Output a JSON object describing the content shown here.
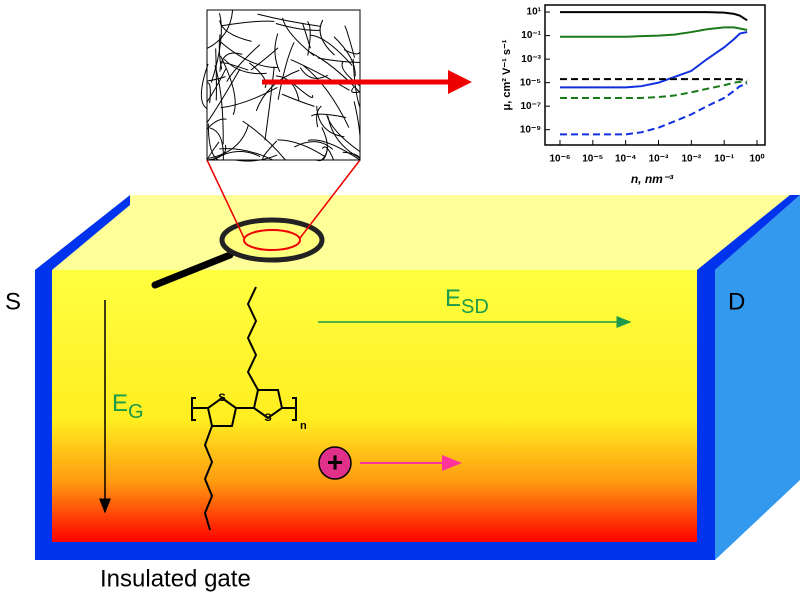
{
  "labels": {
    "source": "S",
    "drain": "D",
    "gate": "Insulated gate"
  },
  "fields": {
    "source_drain": {
      "symbol": "E",
      "subscript": "SD"
    },
    "gate": {
      "symbol": "E",
      "subscript": "G"
    }
  },
  "molecule": {
    "atoms": [
      "S",
      "S"
    ],
    "repeat": "n"
  },
  "charge": "+",
  "chart_data": {
    "type": "line",
    "xlabel": "n, nm⁻³",
    "ylabel": "μ, cm² V⁻¹ s⁻¹",
    "xscale": "log",
    "yscale": "log",
    "xlim": [
      3.5e-07,
      1.75
    ],
    "ylim": [
      5e-11,
      40
    ],
    "xticks": [
      {
        "value": 1e-06,
        "label": "10⁻⁶"
      },
      {
        "value": 1e-05,
        "label": "10⁻⁵"
      },
      {
        "value": 0.0001,
        "label": "10⁻⁴"
      },
      {
        "value": 0.001,
        "label": "10⁻³"
      },
      {
        "value": 0.01,
        "label": "10⁻²"
      },
      {
        "value": 0.1,
        "label": "10⁻¹"
      },
      {
        "value": 1,
        "label": "10⁰"
      }
    ],
    "yticks": [
      {
        "value": 10,
        "label": "10¹"
      },
      {
        "value": 0.1,
        "label": "10⁻¹"
      },
      {
        "value": 0.001,
        "label": "10⁻³"
      },
      {
        "value": 1e-05,
        "label": "10⁻⁵"
      },
      {
        "value": 1e-07,
        "label": "10⁻⁷"
      },
      {
        "value": 1e-09,
        "label": "10⁻⁹"
      }
    ],
    "x": [
      1e-06,
      1e-05,
      0.0001,
      0.0003,
      0.001,
      0.003,
      0.01,
      0.03,
      0.1,
      0.2,
      0.3,
      0.5
    ],
    "series": [
      {
        "color": "#000000",
        "dashed": false,
        "values": [
          10,
          10,
          10,
          10,
          10,
          10,
          10,
          10,
          9,
          7,
          5,
          2
        ]
      },
      {
        "color": "#1a7a1a",
        "dashed": false,
        "values": [
          0.08,
          0.08,
          0.08,
          0.09,
          0.1,
          0.12,
          0.2,
          0.35,
          0.5,
          0.5,
          0.4,
          0.3
        ]
      },
      {
        "color": "#1030e0",
        "dashed": false,
        "values": [
          4e-06,
          4e-06,
          4e-06,
          5e-06,
          1e-05,
          3e-05,
          0.0001,
          0.001,
          0.01,
          0.05,
          0.15,
          0.2
        ]
      },
      {
        "color": "#000000",
        "dashed": true,
        "values": [
          2e-05,
          2e-05,
          2e-05,
          2e-05,
          2e-05,
          2e-05,
          2e-05,
          2e-05,
          2e-05,
          2e-05,
          2e-05,
          1.5e-05
        ]
      },
      {
        "color": "#1a7a1a",
        "dashed": true,
        "values": [
          5e-07,
          5e-07,
          5e-07,
          5e-07,
          6e-07,
          8e-07,
          1.5e-06,
          3e-06,
          6e-06,
          1e-05,
          1.2e-05,
          1e-05
        ]
      },
      {
        "color": "#1030e0",
        "dashed": true,
        "values": [
          4e-10,
          4e-10,
          4e-10,
          6e-10,
          1.5e-09,
          5e-09,
          2e-08,
          1e-07,
          5e-07,
          2e-06,
          5e-06,
          8e-06
        ]
      }
    ]
  }
}
